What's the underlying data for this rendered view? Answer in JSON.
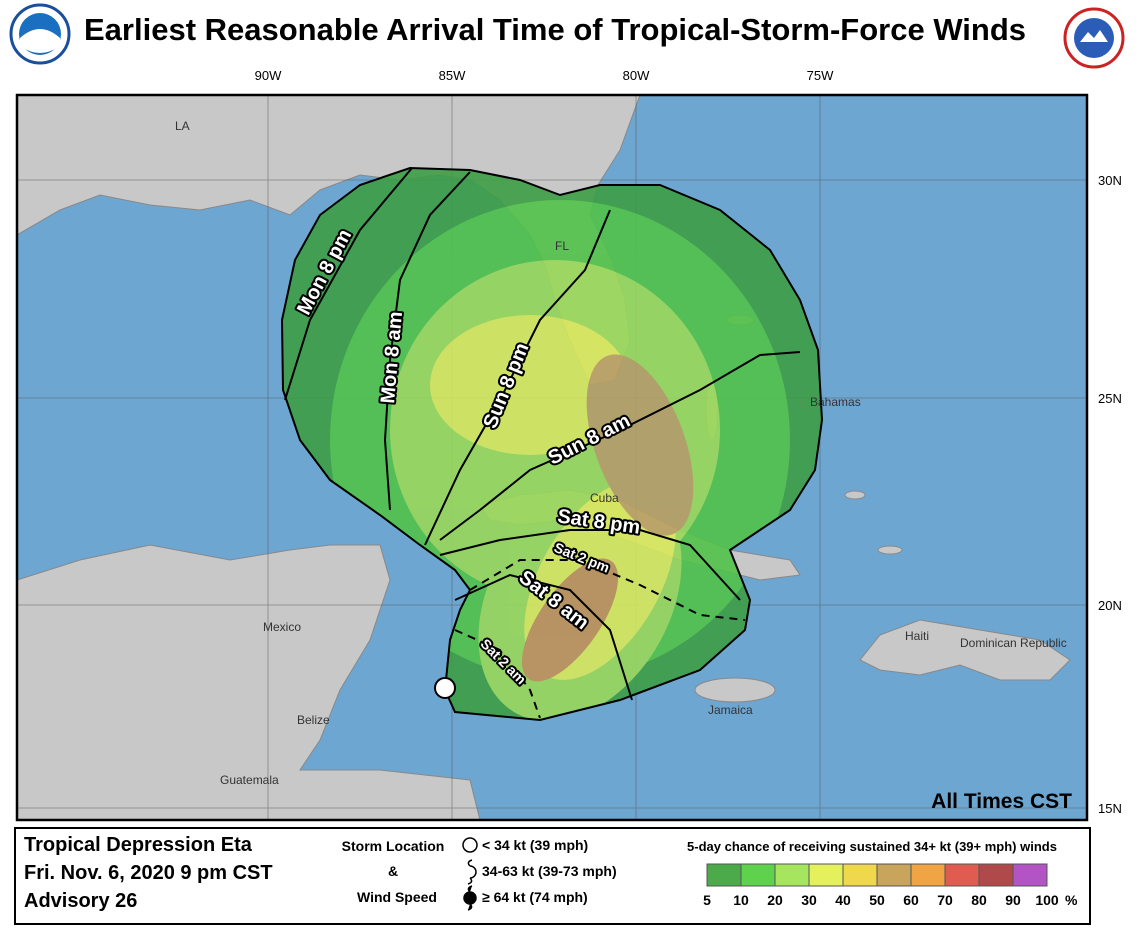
{
  "header": {
    "title": "Earliest Reasonable Arrival Time of Tropical-Storm-Force Winds"
  },
  "map": {
    "lon_labels": [
      "90W",
      "85W",
      "80W",
      "75W"
    ],
    "lat_labels": [
      "30N",
      "25N",
      "20N",
      "15N"
    ],
    "places": [
      "LA",
      "FL",
      "Bahamas",
      "Cuba",
      "Mexico",
      "Haiti",
      "Dominican Republic",
      "Jamaica",
      "Belize",
      "Guatemala"
    ],
    "contour_labels": [
      "Mon 8 pm",
      "Mon 8 am",
      "Sun 8 pm",
      "Sun 8 am",
      "Sat 8 pm",
      "Sat 2 pm",
      "Sat 8 am",
      "Sat 2 am"
    ],
    "note": "All Times CST"
  },
  "footer": {
    "storm": [
      "Tropical Depression Eta",
      "Fri. Nov. 6, 2020 9 pm CST",
      "Advisory 26"
    ],
    "legend_title": [
      "Storm Location",
      "&",
      "Wind Speed"
    ],
    "wind_classes": [
      "< 34 kt (39 mph)",
      "34-63 kt (39-73 mph)",
      "≥ 64 kt (74 mph)"
    ],
    "probability": {
      "title": "5-day chance of receiving sustained 34+ kt (39+ mph) winds",
      "ticks": [
        5,
        10,
        20,
        30,
        40,
        50,
        60,
        70,
        80,
        90,
        100
      ],
      "unit": "%",
      "colors": [
        "#4caa4a",
        "#5ed24c",
        "#a6e65e",
        "#e4f05c",
        "#f0d84c",
        "#c8a45c",
        "#f0a444",
        "#e05c50",
        "#b04a4a",
        "#b254c4"
      ]
    }
  }
}
